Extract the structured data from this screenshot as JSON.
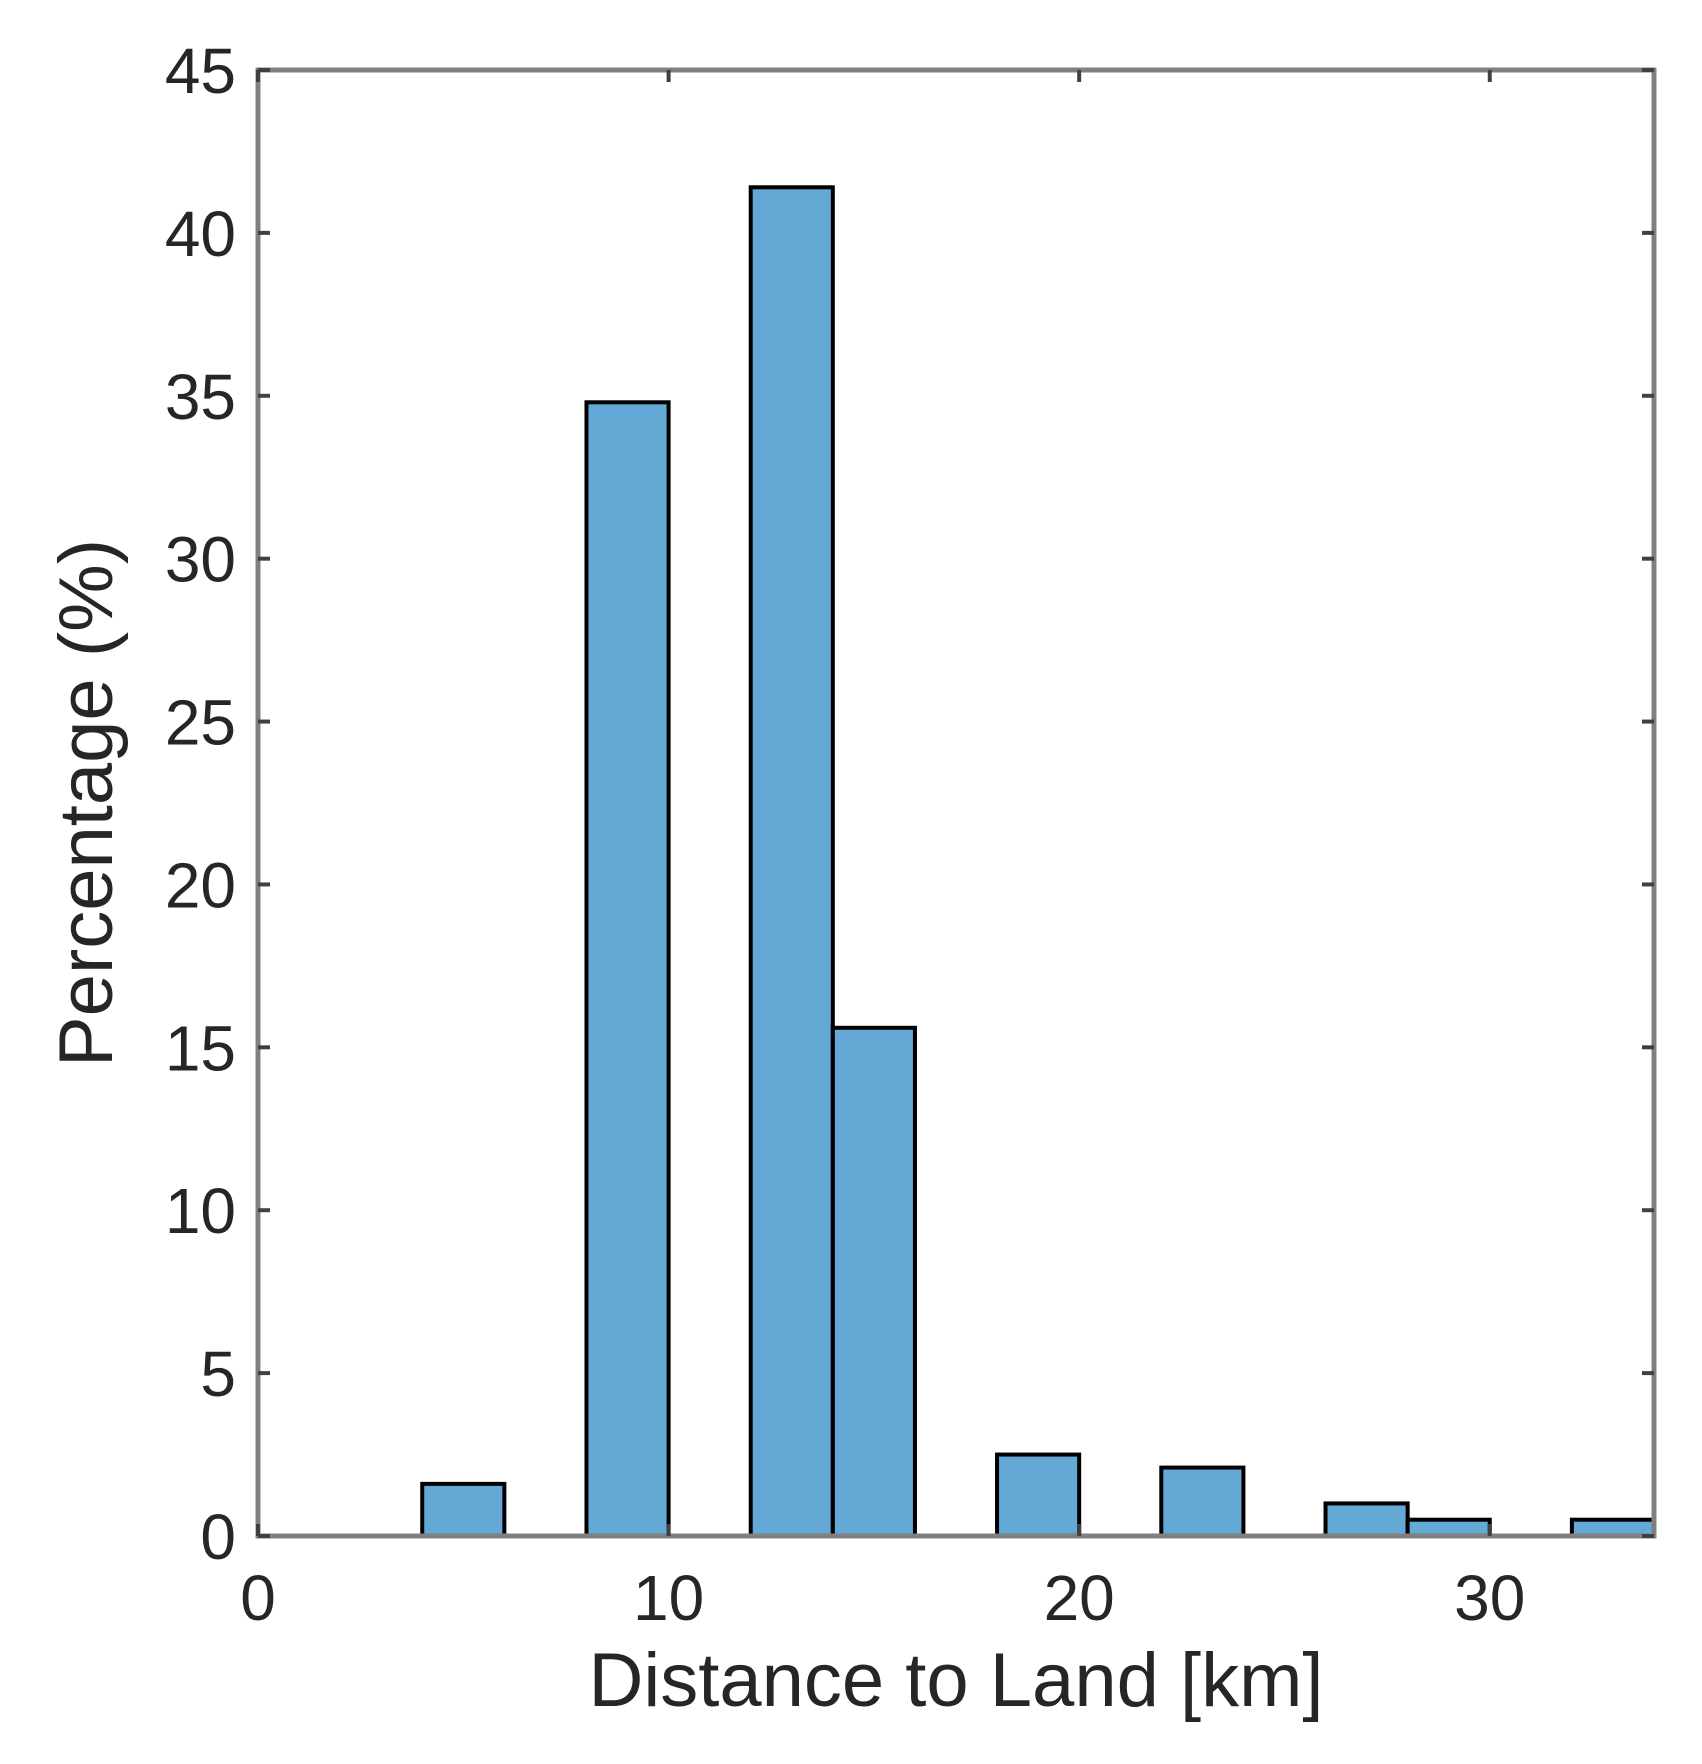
{
  "chart_data": {
    "type": "bar",
    "xlabel": "Distance to Land [km]",
    "ylabel": "Percentage (%)",
    "xlim": [
      0,
      34
    ],
    "ylim": [
      0,
      45
    ],
    "xticks": [
      0,
      10,
      20,
      30
    ],
    "yticks": [
      0,
      5,
      10,
      15,
      20,
      25,
      30,
      35,
      40,
      45
    ],
    "bin_width": 2,
    "bars": [
      {
        "x0": 4,
        "x1": 6,
        "value": 1.6
      },
      {
        "x0": 8,
        "x1": 10,
        "value": 34.8
      },
      {
        "x0": 12,
        "x1": 14,
        "value": 41.4
      },
      {
        "x0": 14,
        "x1": 16,
        "value": 15.6
      },
      {
        "x0": 18,
        "x1": 20,
        "value": 2.5
      },
      {
        "x0": 22,
        "x1": 24,
        "value": 2.1
      },
      {
        "x0": 26,
        "x1": 28,
        "value": 1.0
      },
      {
        "x0": 28,
        "x1": 30,
        "value": 0.5
      },
      {
        "x0": 32,
        "x1": 34,
        "value": 0.5
      }
    ],
    "grid": false,
    "colors": {
      "bar_fill": "#64a8d6",
      "bar_edge": "#000000",
      "axis": "#808080",
      "text": "#262626"
    }
  }
}
